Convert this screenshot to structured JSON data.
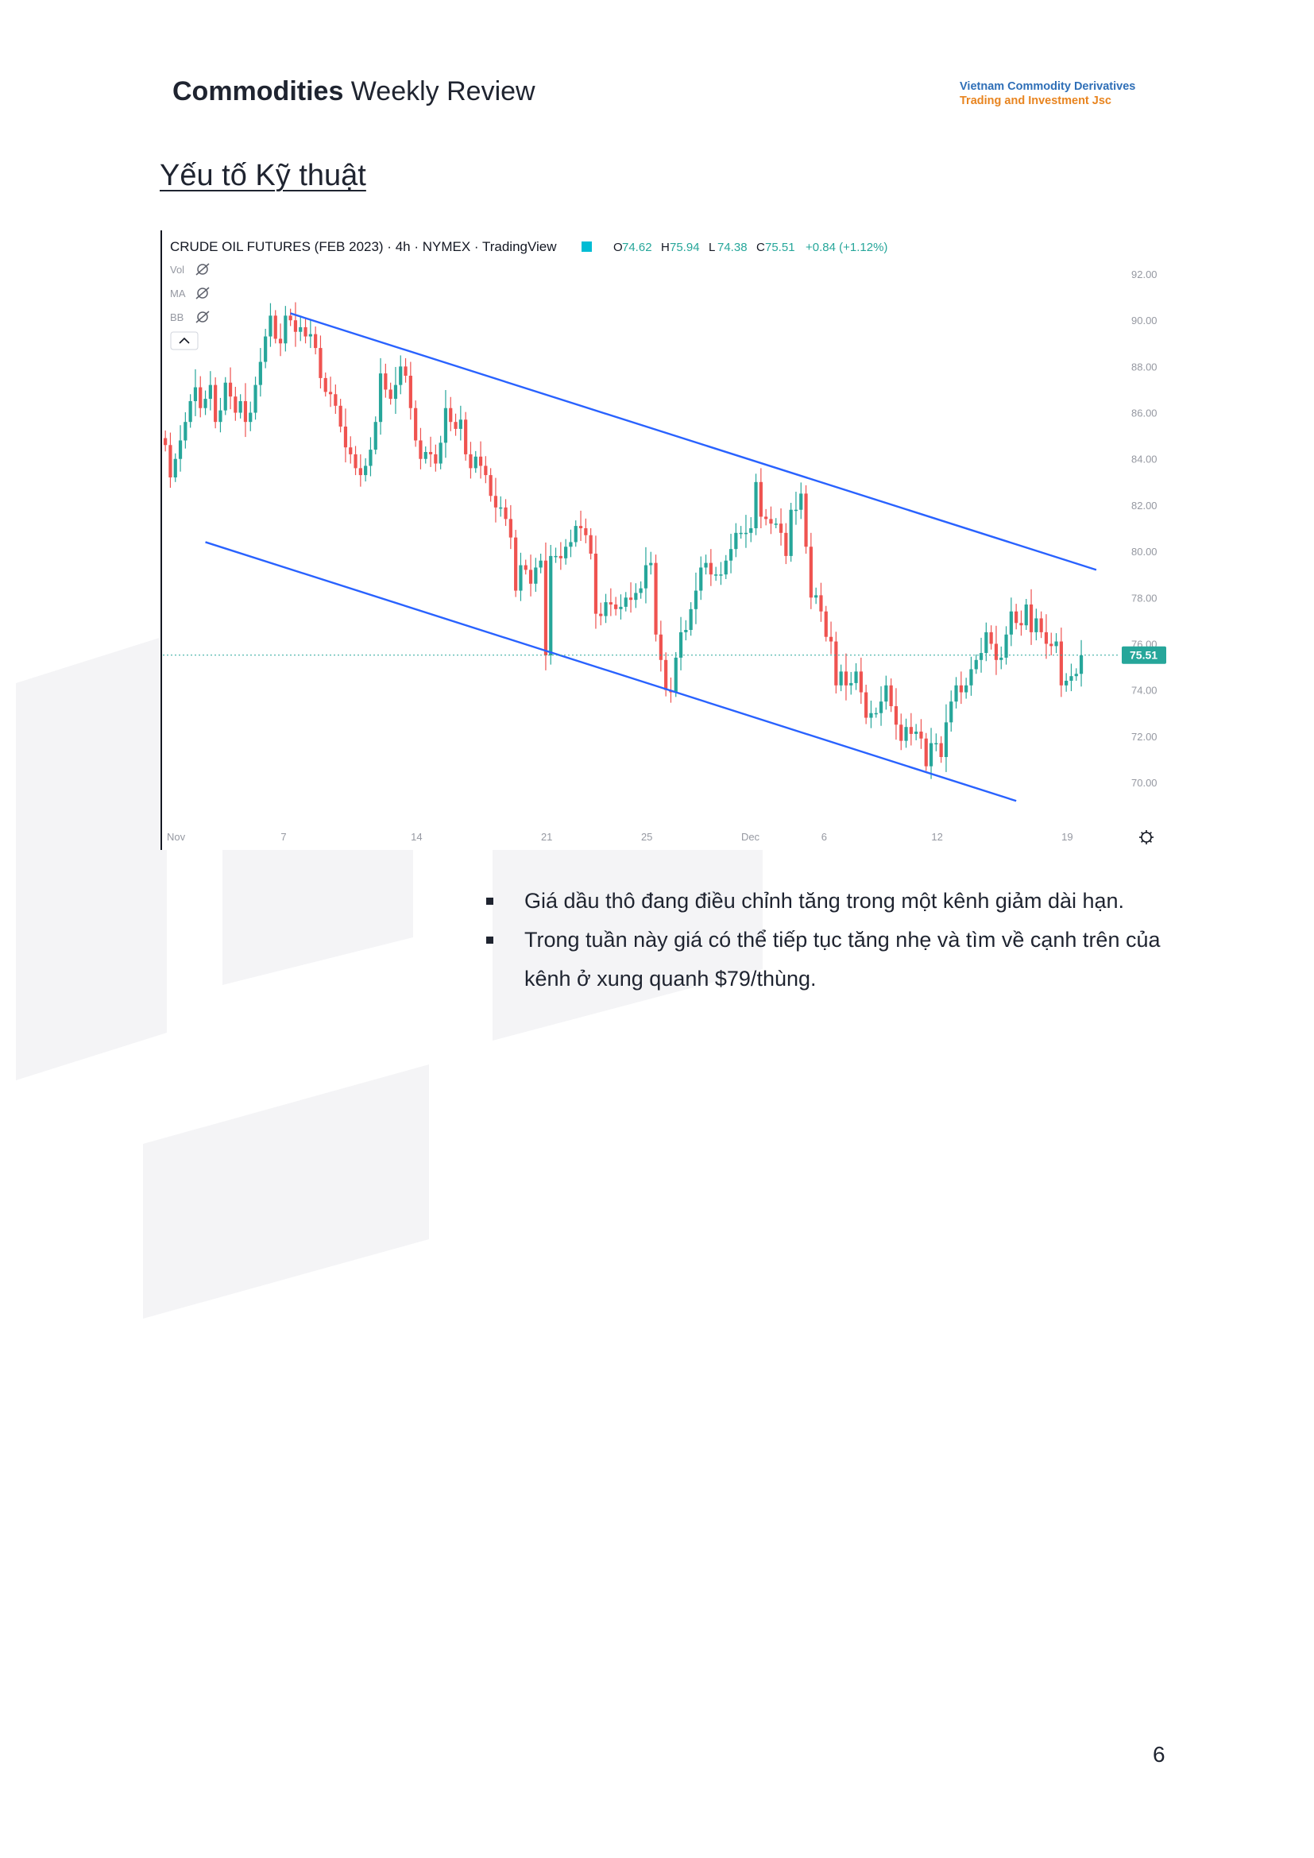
{
  "header": {
    "title_bold": "Commodities",
    "title_rest": " Weekly Review"
  },
  "brand": {
    "line1": "Vietnam Commodity Derivatives",
    "line2": "Trading and Investment Jsc",
    "line1_color": "#2f6fb7",
    "line2_color": "#e8841f"
  },
  "section_title": "Yếu tố Kỹ thuật",
  "chart_data": {
    "type": "candlestick",
    "title": "CRUDE OIL FUTURES (FEB 2023) · 4h · NYMEX · TradingView",
    "ohlc_readout": {
      "O": "74.62",
      "H": "75.94",
      "L": "74.38",
      "C": "75.51",
      "change": "+0.84 (+1.12%)"
    },
    "indicators": [
      "Vol",
      "MA",
      "BB"
    ],
    "ylim": [
      68.6,
      92.4
    ],
    "y_ticks": [
      "92.00",
      "90.00",
      "88.00",
      "86.00",
      "84.00",
      "82.00",
      "80.00",
      "78.00",
      "76.00",
      "74.00",
      "72.00",
      "70.00"
    ],
    "x_ticks": [
      {
        "label": "Nov",
        "bar": 0
      },
      {
        "label": "7",
        "bar": 24
      },
      {
        "label": "14",
        "bar": 50
      },
      {
        "label": "21",
        "bar": 76
      },
      {
        "label": "25",
        "bar": 96
      },
      {
        "label": "Dec",
        "bar": 116
      },
      {
        "label": "6",
        "bar": 132
      },
      {
        "label": "12",
        "bar": 154
      },
      {
        "label": "19",
        "bar": 180
      }
    ],
    "last_price": 75.51,
    "last_price_label": "75.51",
    "up_color": "#26a69a",
    "down_color": "#ef5350",
    "trendlines": [
      {
        "x1": 25,
        "y1": 90.3,
        "x2": 186,
        "y2": 79.2
      },
      {
        "x1": 8,
        "y1": 80.4,
        "x2": 170,
        "y2": 69.2
      }
    ],
    "closes": [
      84.6,
      83.2,
      84.0,
      84.8,
      85.6,
      86.5,
      87.1,
      86.2,
      86.6,
      87.2,
      85.6,
      86.1,
      87.3,
      86.7,
      86.0,
      86.5,
      85.6,
      86.0,
      87.2,
      88.2,
      89.3,
      90.2,
      89.2,
      89.0,
      90.2,
      90.0,
      89.5,
      89.7,
      89.3,
      89.4,
      88.8,
      87.5,
      86.9,
      86.8,
      86.3,
      85.4,
      84.5,
      84.2,
      83.6,
      83.3,
      83.7,
      84.4,
      85.6,
      87.7,
      87.0,
      86.6,
      87.2,
      88.0,
      87.6,
      86.2,
      84.8,
      84.0,
      84.3,
      84.2,
      83.8,
      84.7,
      86.2,
      85.6,
      85.3,
      85.7,
      84.2,
      83.6,
      84.1,
      83.7,
      83.3,
      82.4,
      81.9,
      81.9,
      81.4,
      80.6,
      78.3,
      79.4,
      79.2,
      78.6,
      79.3,
      79.6,
      75.5,
      79.8,
      79.8,
      79.7,
      80.2,
      80.4,
      81.1,
      81.0,
      80.7,
      79.9,
      77.3,
      77.2,
      77.8,
      77.7,
      77.5,
      77.6,
      78.0,
      77.9,
      78.2,
      78.4,
      79.4,
      79.5,
      76.4,
      75.3,
      74.0,
      73.9,
      75.4,
      76.5,
      76.6,
      77.5,
      78.3,
      79.3,
      79.5,
      79.0,
      79.0,
      79.0,
      79.6,
      80.1,
      80.8,
      80.8,
      80.8,
      81.0,
      83.0,
      81.5,
      81.4,
      81.2,
      81.2,
      80.8,
      79.8,
      81.8,
      81.8,
      82.5,
      80.2,
      78.0,
      78.1,
      77.4,
      76.3,
      76.1,
      74.2,
      74.8,
      74.2,
      74.3,
      74.8,
      73.9,
      72.8,
      73.0,
      73.0,
      73.5,
      74.2,
      73.3,
      72.5,
      71.8,
      72.4,
      72.1,
      72.2,
      71.9,
      70.7,
      71.7,
      71.7,
      71.1,
      72.6,
      73.5,
      74.2,
      73.9,
      74.2,
      74.9,
      75.3,
      75.6,
      76.5,
      76.0,
      75.3,
      75.4,
      76.4,
      77.4,
      76.9,
      76.8,
      77.7,
      76.5,
      77.1,
      76.5,
      76.0,
      75.9,
      76.1,
      74.2,
      74.4,
      74.6,
      74.7,
      75.5
    ]
  },
  "bullets": [
    "Giá dầu thô đang điều chỉnh tăng trong một kênh giảm dài hạn.",
    "Trong tuần này giá có thể tiếp tục tăng nhẹ và tìm về cạnh trên của kênh ở xung quanh $79/thùng."
  ],
  "page_number": "6"
}
